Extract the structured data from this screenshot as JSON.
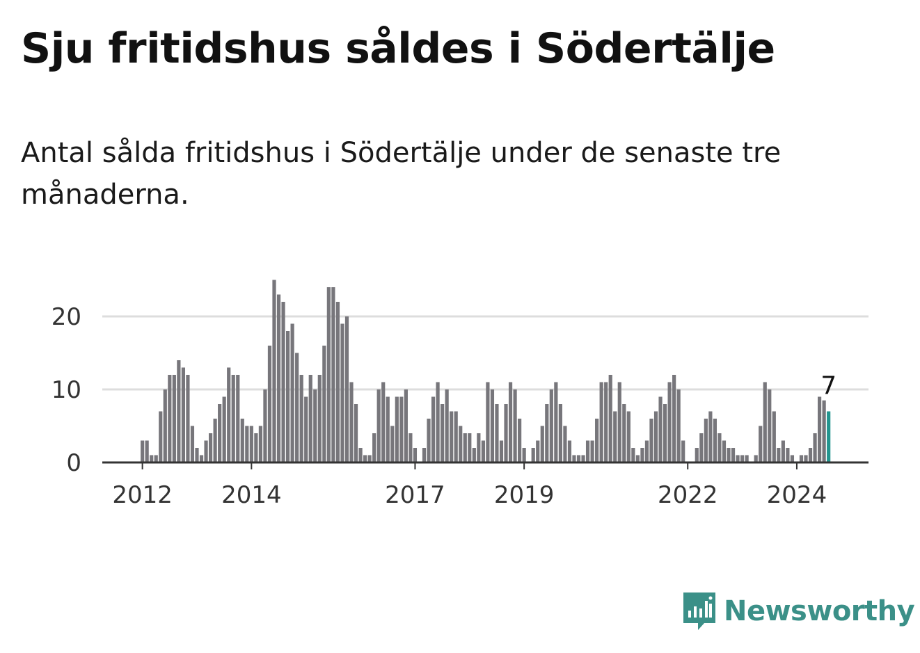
{
  "header": {
    "title": "Sju fritidshus såldes i Södertälje",
    "subtitle": "Antal sålda fritidshus i Södertälje under de senaste tre månaderna."
  },
  "brand": {
    "name": "Newsworthy",
    "color": "#3b9088",
    "icon": "newsworthy-logo-icon"
  },
  "colors": {
    "bar": "#77767b",
    "highlight": "#23958f",
    "grid": "#dddddd",
    "axis": "#333333"
  },
  "chart_data": {
    "type": "bar",
    "title": "Sju fritidshus såldes i Södertälje",
    "subtitle": "Antal sålda fritidshus i Södertälje under de senaste tre månaderna.",
    "xlabel": "",
    "ylabel": "",
    "ylim": [
      0,
      25
    ],
    "yticks": [
      0,
      10,
      20
    ],
    "grid": true,
    "x_start": "2011-12",
    "frequency": "monthly",
    "x_tick_labels": [
      {
        "label": "2012",
        "index": 1
      },
      {
        "label": "2014",
        "index": 25
      },
      {
        "label": "2017",
        "index": 61
      },
      {
        "label": "2019",
        "index": 85
      },
      {
        "label": "2022",
        "index": 121
      },
      {
        "label": "2024",
        "index": 145
      }
    ],
    "values": [
      0,
      3,
      3,
      1,
      1,
      7,
      10,
      12,
      12,
      14,
      13,
      12,
      5,
      2,
      1,
      3,
      4,
      6,
      8,
      9,
      13,
      12,
      12,
      6,
      5,
      5,
      4,
      5,
      10,
      16,
      25,
      23,
      22,
      18,
      19,
      15,
      12,
      9,
      12,
      10,
      12,
      16,
      24,
      24,
      22,
      19,
      20,
      11,
      8,
      2,
      1,
      1,
      4,
      10,
      11,
      9,
      5,
      9,
      9,
      10,
      4,
      2,
      0,
      2,
      6,
      9,
      11,
      8,
      10,
      7,
      7,
      5,
      4,
      4,
      2,
      4,
      3,
      11,
      10,
      8,
      3,
      8,
      11,
      10,
      6,
      2,
      0,
      2,
      3,
      5,
      8,
      10,
      11,
      8,
      5,
      3,
      1,
      1,
      1,
      3,
      3,
      6,
      11,
      11,
      12,
      7,
      11,
      8,
      7,
      2,
      1,
      2,
      3,
      6,
      7,
      9,
      8,
      11,
      12,
      10,
      3,
      0,
      0,
      2,
      4,
      6,
      7,
      6,
      4,
      3,
      2,
      2,
      1,
      1,
      1,
      0,
      1,
      5,
      11,
      10,
      7,
      2,
      3,
      2,
      1,
      0,
      1,
      1,
      2,
      4,
      9,
      8.5,
      7
    ],
    "highlight_index": 152,
    "annotation": {
      "text": "7",
      "index": 152
    }
  }
}
